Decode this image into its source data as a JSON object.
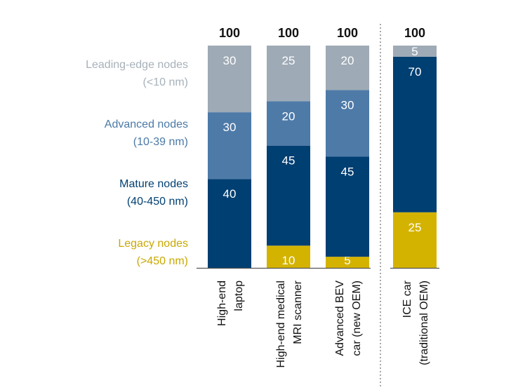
{
  "chart_data": {
    "type": "bar",
    "stacked": true,
    "categories": [
      [
        "High-end",
        "laptop"
      ],
      [
        "High-end medical",
        "MRI scanner"
      ],
      [
        "Advanced BEV",
        "car (new OEM)"
      ],
      [
        "ICE car",
        "(traditional OEM)"
      ]
    ],
    "totals": [
      "100",
      "100",
      "100",
      "100"
    ],
    "series": [
      {
        "name": [
          "Legacy nodes",
          "(>450 nm)"
        ],
        "color": "#d4b300",
        "label_color": "#c9a800",
        "values": [
          0,
          10,
          5,
          25
        ]
      },
      {
        "name": [
          "Mature nodes",
          "(40-450 nm)"
        ],
        "color": "#003f72",
        "label_color": "#003f72",
        "values": [
          40,
          45,
          45,
          70
        ]
      },
      {
        "name": [
          "Advanced nodes",
          "(10-39 nm)"
        ],
        "color": "#4e7aa8",
        "label_color": "#4b79a6",
        "values": [
          30,
          20,
          30,
          0
        ]
      },
      {
        "name": [
          "Leading-edge nodes",
          "(<10 nm)"
        ],
        "color": "#9eaab5",
        "label_color": "#a7b1ba",
        "values": [
          30,
          25,
          20,
          5
        ]
      }
    ],
    "ylim": [
      0,
      100
    ],
    "separator_after_category": 2,
    "colors": {
      "total_text": "#111111",
      "segment_text": "#ffffff",
      "axis": "#555555",
      "separator": "#8c8c8c"
    }
  }
}
